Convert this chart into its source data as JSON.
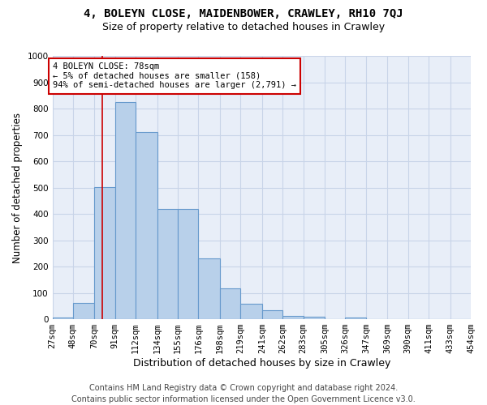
{
  "title1": "4, BOLEYN CLOSE, MAIDENBOWER, CRAWLEY, RH10 7QJ",
  "title2": "Size of property relative to detached houses in Crawley",
  "xlabel": "Distribution of detached houses by size in Crawley",
  "ylabel": "Number of detached properties",
  "footer1": "Contains HM Land Registry data © Crown copyright and database right 2024.",
  "footer2": "Contains public sector information licensed under the Open Government Licence v3.0.",
  "bin_edges": [
    27,
    48,
    70,
    91,
    112,
    134,
    155,
    176,
    198,
    219,
    241,
    262,
    283,
    305,
    326,
    347,
    369,
    390,
    411,
    433,
    454
  ],
  "bin_labels": [
    "27sqm",
    "48sqm",
    "70sqm",
    "91sqm",
    "112sqm",
    "134sqm",
    "155sqm",
    "176sqm",
    "198sqm",
    "219sqm",
    "241sqm",
    "262sqm",
    "283sqm",
    "305sqm",
    "326sqm",
    "347sqm",
    "369sqm",
    "390sqm",
    "411sqm",
    "433sqm",
    "454sqm"
  ],
  "values": [
    5,
    62,
    503,
    825,
    712,
    420,
    420,
    230,
    118,
    60,
    35,
    12,
    10,
    0,
    7,
    0,
    0,
    0,
    0,
    0
  ],
  "bar_color": "#b8d0ea",
  "bar_edge_color": "#6699cc",
  "vline_x": 78,
  "vline_color": "#cc0000",
  "annotation_text": "4 BOLEYN CLOSE: 78sqm\n← 5% of detached houses are smaller (158)\n94% of semi-detached houses are larger (2,791) →",
  "annotation_box_color": "#ffffff",
  "annotation_box_edge": "#cc0000",
  "ylim": [
    0,
    1000
  ],
  "grid_color": "#c8d4e8",
  "bg_color": "#e8eef8",
  "title1_fontsize": 10,
  "title2_fontsize": 9,
  "axis_label_fontsize": 8.5,
  "tick_fontsize": 7.5,
  "footer_fontsize": 7,
  "ann_fontsize": 7.5
}
